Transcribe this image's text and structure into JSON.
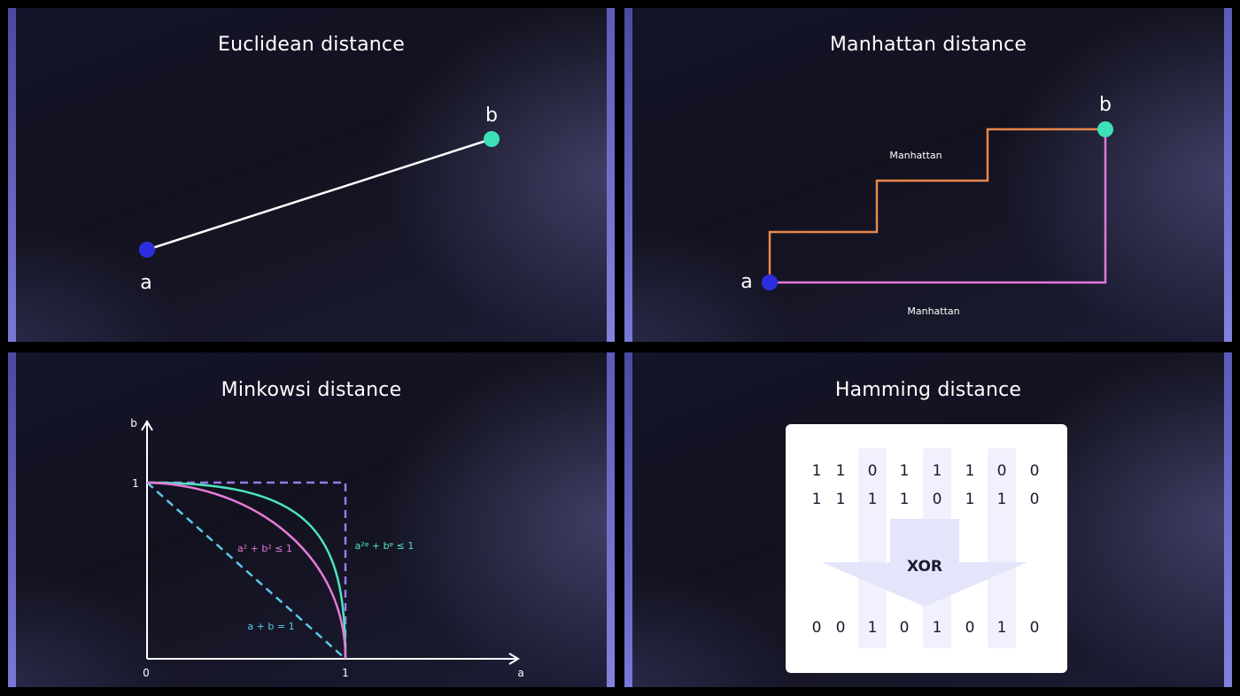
{
  "panels": {
    "euclidean": {
      "title": "Euclidean distance",
      "point_a_label": "a",
      "point_b_label": "b"
    },
    "manhattan": {
      "title": "Manhattan distance",
      "point_a_label": "a",
      "point_b_label": "b",
      "path_label_top": "Manhattan",
      "path_label_bottom": "Manhattan"
    },
    "minkowski": {
      "title": "Minkowsi distance",
      "y_axis_label": "b",
      "x_axis_label": "a",
      "origin_label": "0",
      "y_tick_label": "1",
      "x_tick_label": "1",
      "eq_circle": "a² + b² ≤ 1",
      "eq_superellipse": "a²ᵠ + bᵠ ≤ 1",
      "eq_line": "a + b = 1"
    },
    "hamming": {
      "title": "Hamming distance",
      "row1": [
        "1",
        "1",
        "0",
        "1",
        "1",
        "1",
        "0",
        "0"
      ],
      "row2": [
        "1",
        "1",
        "1",
        "1",
        "0",
        "1",
        "1",
        "0"
      ],
      "result": [
        "0",
        "0",
        "1",
        "0",
        "1",
        "0",
        "1",
        "0"
      ],
      "operation_label": "XOR"
    }
  },
  "colors": {
    "point_a": "#2d2de0",
    "point_b": "#3ee0b8",
    "manhattan_orange": "#e8884a",
    "manhattan_pink": "#e07ad8",
    "minkowski_purple": "#9b7ae8",
    "minkowski_pink": "#e87ad8",
    "minkowski_teal": "#4ee4c0",
    "minkowski_blue": "#5cc8e8",
    "xor_arrow": "#e4e4fb",
    "column_highlight": "#f1f1fd"
  }
}
